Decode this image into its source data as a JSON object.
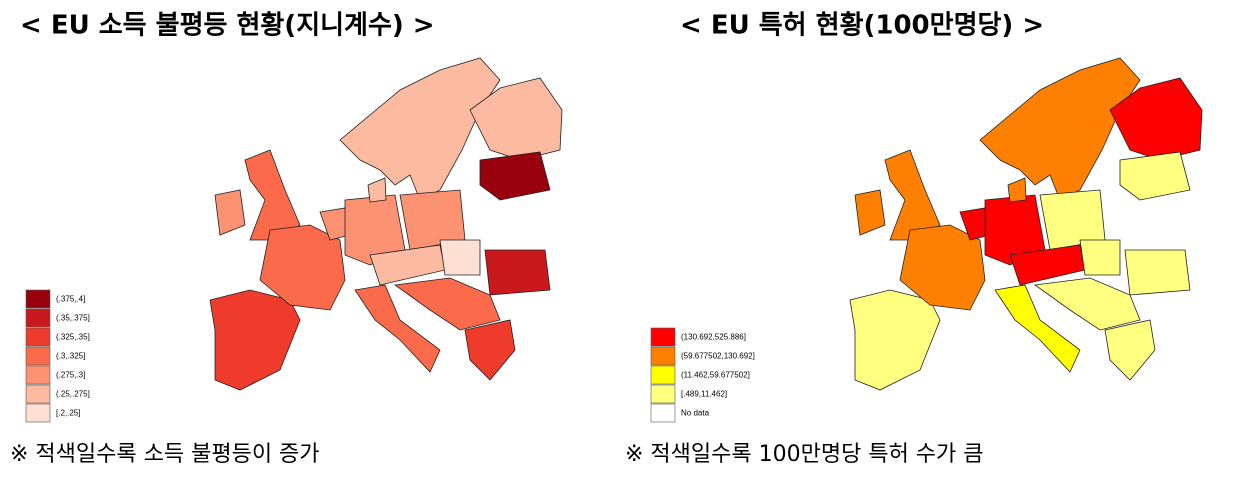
{
  "left": {
    "title": "< EU 소득 불평등 현황(지니계수) >",
    "legend": [
      {
        "label": "(.375,.4]",
        "color": "#99000d"
      },
      {
        "label": "(.35,.375]",
        "color": "#cb181d"
      },
      {
        "label": "(.325,.35]",
        "color": "#ef3b2c"
      },
      {
        "label": "(.3,.325]",
        "color": "#fb6a4a"
      },
      {
        "label": "(.275,.3]",
        "color": "#fc9272"
      },
      {
        "label": "(.25,.275]",
        "color": "#fcbba1"
      },
      {
        "label": "[.2,.25]",
        "color": "#fee0d2"
      }
    ],
    "note": "※ 적색일수록 소득 불평등이 증가"
  },
  "right": {
    "title": "< EU 특허 현황(100만명당)  >",
    "legend": [
      {
        "label": "(130.692,525.886]",
        "color": "#ff0000"
      },
      {
        "label": "(59.677502,130.692]",
        "color": "#ff8000"
      },
      {
        "label": "(11.462,59.677502]",
        "color": "#ffff00"
      },
      {
        "label": "[.489,11.462]",
        "color": "#ffff80"
      },
      {
        "label": "No data",
        "color": "#ffffff"
      }
    ],
    "note": "※ 적색일수록 100만명당 특허 수가 큼"
  }
}
